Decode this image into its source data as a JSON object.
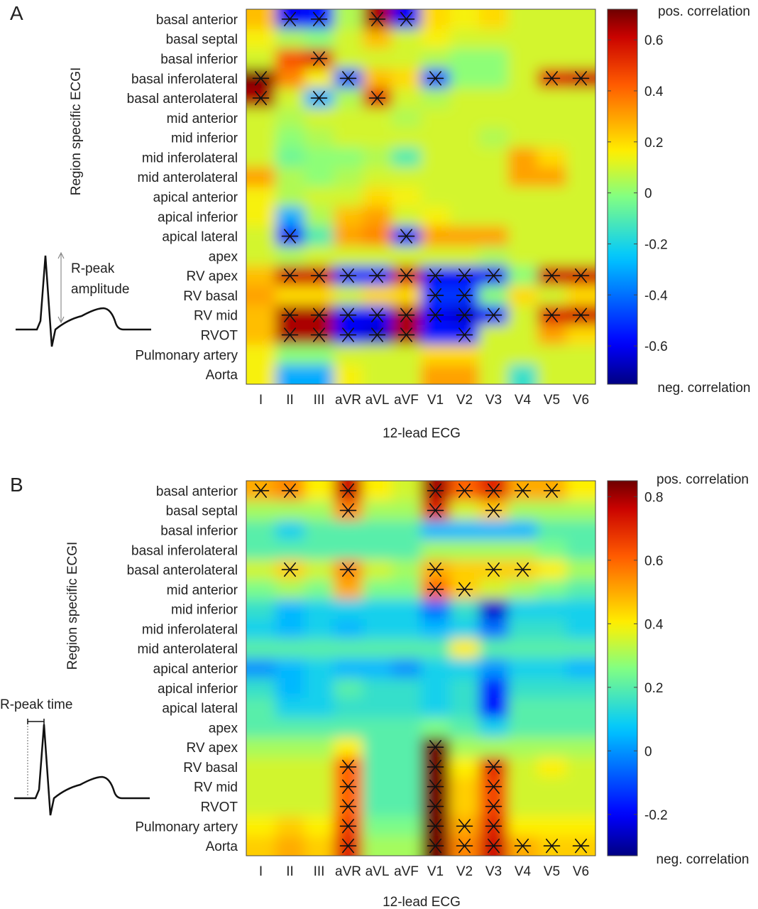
{
  "chart_data": [
    {
      "type": "heatmap",
      "panel_label": "A",
      "xlabel": "12-lead ECG",
      "ylabel": "Region specific ECGI",
      "inset_label": "R-peak amplitude",
      "inset_label_lines": [
        "R-peak",
        "amplitude"
      ],
      "colorbar": {
        "top_label": "pos. correlation",
        "bottom_label": "neg. correlation",
        "range": [
          -0.75,
          0.72
        ],
        "ticks": [
          0.6,
          0.4,
          0.2,
          0,
          -0.2,
          -0.4,
          -0.6
        ],
        "tick_labels": [
          "0.6",
          "0.4",
          "0.2",
          "0",
          "-0.2",
          "-0.4",
          "-0.6"
        ]
      },
      "x_categories": [
        "I",
        "II",
        "III",
        "aVR",
        "aVL",
        "aVF",
        "V1",
        "V2",
        "V3",
        "V4",
        "V5",
        "V6"
      ],
      "y_categories": [
        "basal anterior",
        "basal septal",
        "basal inferior",
        "basal inferolateral",
        "basal anterolateral",
        "mid anterior",
        "mid inferior",
        "mid inferolateral",
        "mid anterolateral",
        "apical anterior",
        "apical inferior",
        "apical lateral",
        "apex",
        "RV apex",
        "RV basal",
        "RV mid",
        "RVOT",
        "Pulmonary artery",
        "Aorta"
      ],
      "values": [
        [
          0.25,
          -0.6,
          -0.55,
          0.05,
          0.65,
          -0.6,
          0.2,
          0.15,
          0.2,
          0.1,
          0.1,
          0.1
        ],
        [
          0.15,
          0.05,
          0.0,
          0.1,
          0.25,
          0.1,
          0.15,
          0.1,
          0.1,
          0.1,
          0.1,
          0.1
        ],
        [
          0.1,
          0.45,
          0.55,
          0.1,
          0.1,
          0.1,
          0.05,
          0.0,
          0.0,
          0.1,
          0.1,
          0.1
        ],
        [
          0.7,
          0.35,
          0.15,
          -0.45,
          0.25,
          0.2,
          -0.45,
          0.0,
          0.0,
          0.1,
          0.55,
          0.6
        ],
        [
          0.65,
          0.1,
          -0.3,
          0.05,
          0.55,
          0.1,
          0.05,
          0.1,
          0.1,
          0.1,
          0.1,
          0.1
        ],
        [
          0.1,
          0.05,
          0.1,
          0.1,
          0.1,
          0.05,
          0.1,
          0.1,
          0.1,
          0.1,
          0.1,
          0.1
        ],
        [
          0.1,
          0.0,
          0.05,
          0.1,
          0.1,
          0.1,
          0.1,
          0.1,
          0.05,
          0.1,
          0.1,
          0.1
        ],
        [
          0.1,
          -0.05,
          0.0,
          0.0,
          0.05,
          -0.1,
          0.1,
          0.1,
          0.1,
          0.3,
          0.2,
          0.1
        ],
        [
          0.3,
          0.05,
          0.0,
          0.05,
          0.1,
          0.1,
          0.1,
          0.1,
          0.1,
          0.3,
          0.3,
          0.1
        ],
        [
          0.15,
          0.05,
          0.1,
          0.1,
          0.2,
          0.15,
          0.1,
          0.1,
          0.1,
          0.1,
          0.1,
          0.1
        ],
        [
          0.15,
          -0.3,
          0.05,
          0.25,
          0.3,
          0.1,
          0.15,
          0.1,
          0.1,
          0.1,
          0.1,
          0.1
        ],
        [
          0.1,
          -0.55,
          -0.1,
          0.3,
          0.35,
          -0.55,
          0.3,
          0.3,
          0.3,
          0.1,
          0.1,
          0.1
        ],
        [
          0.1,
          0.05,
          0.1,
          0.1,
          0.1,
          0.1,
          0.1,
          0.1,
          0.05,
          0.1,
          0.1,
          0.1
        ],
        [
          0.25,
          0.6,
          0.6,
          -0.55,
          -0.55,
          0.6,
          -0.6,
          -0.6,
          -0.6,
          0.0,
          0.6,
          0.6
        ],
        [
          0.3,
          0.2,
          0.2,
          0.1,
          0.2,
          0.2,
          -0.5,
          -0.5,
          0.0,
          0.2,
          0.1,
          0.2
        ],
        [
          0.25,
          0.65,
          0.65,
          -0.6,
          -0.6,
          0.65,
          -0.6,
          -0.65,
          -0.55,
          0.1,
          0.55,
          0.6
        ],
        [
          0.25,
          0.65,
          0.65,
          -0.6,
          -0.65,
          0.65,
          -0.55,
          -0.55,
          0.1,
          0.1,
          0.3,
          0.2
        ],
        [
          0.15,
          0.0,
          0.0,
          0.1,
          0.1,
          0.1,
          0.2,
          0.2,
          0.1,
          0.1,
          0.1,
          0.1
        ],
        [
          0.15,
          -0.3,
          -0.3,
          0.15,
          0.1,
          0.1,
          0.3,
          0.3,
          0.1,
          -0.15,
          0.1,
          0.1
        ]
      ],
      "significant": [
        [
          0,
          1
        ],
        [
          0,
          2
        ],
        [
          0,
          4
        ],
        [
          0,
          5
        ],
        [
          2,
          2
        ],
        [
          3,
          0
        ],
        [
          3,
          3
        ],
        [
          3,
          6
        ],
        [
          3,
          10
        ],
        [
          3,
          11
        ],
        [
          4,
          0
        ],
        [
          4,
          2
        ],
        [
          4,
          4
        ],
        [
          11,
          1
        ],
        [
          11,
          5
        ],
        [
          13,
          1
        ],
        [
          13,
          2
        ],
        [
          13,
          3
        ],
        [
          13,
          4
        ],
        [
          13,
          5
        ],
        [
          13,
          6
        ],
        [
          13,
          7
        ],
        [
          13,
          8
        ],
        [
          13,
          10
        ],
        [
          13,
          11
        ],
        [
          14,
          6
        ],
        [
          14,
          7
        ],
        [
          15,
          1
        ],
        [
          15,
          2
        ],
        [
          15,
          3
        ],
        [
          15,
          4
        ],
        [
          15,
          5
        ],
        [
          15,
          6
        ],
        [
          15,
          7
        ],
        [
          15,
          8
        ],
        [
          15,
          10
        ],
        [
          15,
          11
        ],
        [
          16,
          1
        ],
        [
          16,
          2
        ],
        [
          16,
          3
        ],
        [
          16,
          4
        ],
        [
          16,
          5
        ],
        [
          16,
          7
        ]
      ]
    },
    {
      "type": "heatmap",
      "panel_label": "B",
      "xlabel": "12-lead ECG",
      "ylabel": "Region specific ECGI",
      "inset_label": "R-peak time",
      "inset_label_lines": [
        "R-peak time"
      ],
      "colorbar": {
        "top_label": "pos. correlation",
        "bottom_label": "neg. correlation",
        "range": [
          -0.33,
          0.85
        ],
        "ticks": [
          0.8,
          0.6,
          0.4,
          0.2,
          0,
          -0.2
        ],
        "tick_labels": [
          "0.8",
          "0.6",
          "0.4",
          "0.2",
          "0",
          "-0.2"
        ]
      },
      "x_categories": [
        "I",
        "II",
        "III",
        "aVR",
        "aVL",
        "aVF",
        "V1",
        "V2",
        "V3",
        "V4",
        "V5",
        "V6"
      ],
      "y_categories": [
        "basal anterior",
        "basal septal",
        "basal inferior",
        "basal inferolateral",
        "basal anterolateral",
        "mid anterior",
        "mid inferior",
        "mid inferolateral",
        "mid anterolateral",
        "apical anterior",
        "apical inferior",
        "apical lateral",
        "apex",
        "RV apex",
        "RV basal",
        "RV mid",
        "RVOT",
        "Pulmonary artery",
        "Aorta"
      ],
      "values": [
        [
          0.5,
          0.55,
          0.4,
          0.75,
          0.4,
          0.35,
          0.8,
          0.6,
          0.7,
          0.5,
          0.5,
          0.4
        ],
        [
          0.3,
          0.3,
          0.3,
          0.55,
          0.3,
          0.3,
          0.7,
          0.35,
          0.45,
          0.3,
          0.3,
          0.3
        ],
        [
          0.2,
          0.1,
          0.2,
          0.2,
          0.2,
          0.2,
          0.05,
          0.05,
          0.05,
          0.05,
          0.2,
          0.2
        ],
        [
          0.2,
          0.2,
          0.2,
          0.2,
          0.2,
          0.2,
          0.3,
          0.3,
          0.3,
          0.3,
          0.25,
          0.2
        ],
        [
          0.35,
          0.45,
          0.35,
          0.55,
          0.35,
          0.3,
          0.5,
          0.45,
          0.45,
          0.45,
          0.4,
          0.3
        ],
        [
          0.25,
          0.3,
          0.25,
          0.5,
          0.25,
          0.25,
          0.6,
          0.45,
          0.35,
          0.3,
          0.25,
          0.2
        ],
        [
          0.15,
          0.05,
          0.1,
          0.1,
          0.1,
          0.1,
          -0.05,
          0.15,
          -0.25,
          0.1,
          0.1,
          0.1
        ],
        [
          0.1,
          0.05,
          0.1,
          0.05,
          0.1,
          0.1,
          0.05,
          0.1,
          -0.05,
          0.15,
          0.15,
          0.1
        ],
        [
          0.2,
          0.2,
          0.2,
          0.2,
          0.2,
          0.2,
          0.2,
          0.4,
          0.2,
          0.2,
          0.2,
          0.2
        ],
        [
          0.0,
          0.05,
          0.1,
          0.05,
          0.05,
          0.0,
          0.1,
          0.1,
          0.0,
          0.1,
          0.1,
          0.05
        ],
        [
          0.15,
          0.05,
          0.1,
          0.2,
          0.15,
          0.15,
          0.1,
          0.15,
          -0.15,
          0.15,
          0.15,
          0.15
        ],
        [
          0.2,
          0.1,
          0.1,
          0.15,
          0.15,
          0.15,
          0.1,
          0.15,
          -0.2,
          0.2,
          0.2,
          0.2
        ],
        [
          0.2,
          0.2,
          0.2,
          0.2,
          0.2,
          0.2,
          0.25,
          0.2,
          0.1,
          0.2,
          0.2,
          0.2
        ],
        [
          0.3,
          0.3,
          0.3,
          0.4,
          0.2,
          0.2,
          0.85,
          0.3,
          0.3,
          0.3,
          0.3,
          0.3
        ],
        [
          0.35,
          0.35,
          0.35,
          0.6,
          0.2,
          0.2,
          0.85,
          0.4,
          0.7,
          0.35,
          0.4,
          0.35
        ],
        [
          0.35,
          0.35,
          0.35,
          0.6,
          0.2,
          0.2,
          0.85,
          0.45,
          0.65,
          0.35,
          0.35,
          0.35
        ],
        [
          0.35,
          0.35,
          0.35,
          0.6,
          0.2,
          0.2,
          0.85,
          0.45,
          0.65,
          0.35,
          0.35,
          0.35
        ],
        [
          0.4,
          0.45,
          0.4,
          0.65,
          0.25,
          0.25,
          0.85,
          0.5,
          0.7,
          0.4,
          0.4,
          0.4
        ],
        [
          0.45,
          0.5,
          0.45,
          0.7,
          0.3,
          0.3,
          0.85,
          0.55,
          0.75,
          0.5,
          0.45,
          0.45
        ]
      ],
      "significant": [
        [
          0,
          0
        ],
        [
          0,
          1
        ],
        [
          0,
          3
        ],
        [
          0,
          6
        ],
        [
          0,
          7
        ],
        [
          0,
          8
        ],
        [
          0,
          9
        ],
        [
          0,
          10
        ],
        [
          1,
          3
        ],
        [
          1,
          6
        ],
        [
          1,
          8
        ],
        [
          4,
          1
        ],
        [
          4,
          3
        ],
        [
          4,
          6
        ],
        [
          4,
          8
        ],
        [
          4,
          9
        ],
        [
          5,
          6
        ],
        [
          5,
          7
        ],
        [
          13,
          6
        ],
        [
          14,
          3
        ],
        [
          14,
          6
        ],
        [
          14,
          8
        ],
        [
          15,
          3
        ],
        [
          15,
          6
        ],
        [
          15,
          8
        ],
        [
          16,
          3
        ],
        [
          16,
          6
        ],
        [
          16,
          8
        ],
        [
          17,
          3
        ],
        [
          17,
          6
        ],
        [
          17,
          7
        ],
        [
          17,
          8
        ],
        [
          18,
          3
        ],
        [
          18,
          6
        ],
        [
          18,
          7
        ],
        [
          18,
          8
        ],
        [
          18,
          9
        ],
        [
          18,
          10
        ],
        [
          18,
          11
        ]
      ]
    }
  ]
}
